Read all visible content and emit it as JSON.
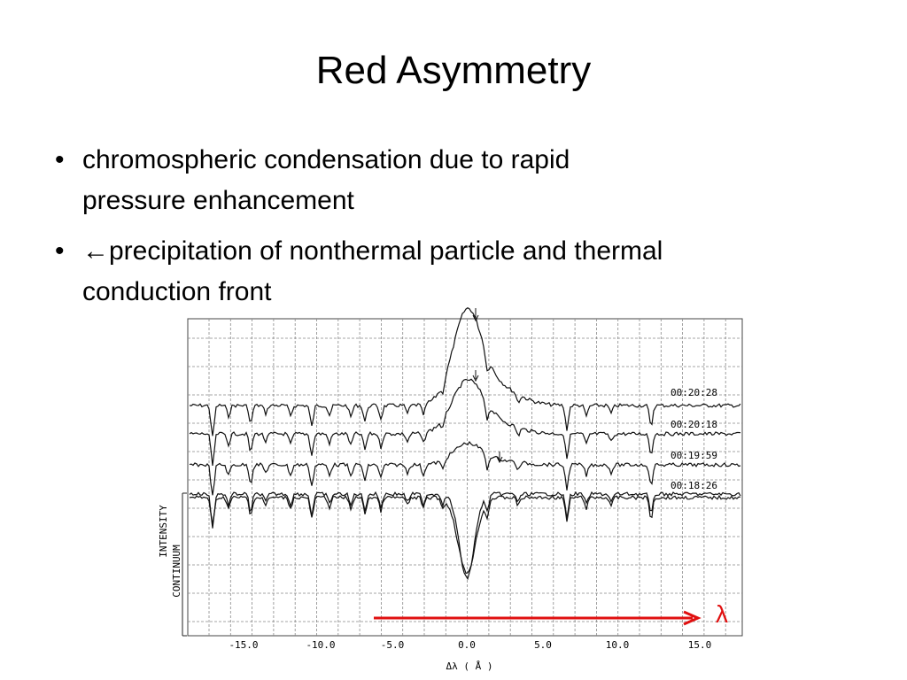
{
  "title": "Red Asymmetry",
  "bullets": [
    [
      "chromospheric condensation due to rapid",
      "pressure enhancement"
    ],
    [
      "←precipitation of nonthermal particle and thermal",
      "conduction front"
    ]
  ],
  "figure": {
    "times": [
      "00:20:28",
      "00:20:18",
      "00:19:59",
      "00:18:26"
    ],
    "x_ticks": [
      "-15.0",
      "-10.0",
      "-5.0",
      "0.0",
      "5.0",
      "10.0",
      "15.0"
    ],
    "x_label": "Δλ ( Å )",
    "y_label": "INTENSITY",
    "continuum_label": "CONTINUUM",
    "lambda": "λ"
  }
}
